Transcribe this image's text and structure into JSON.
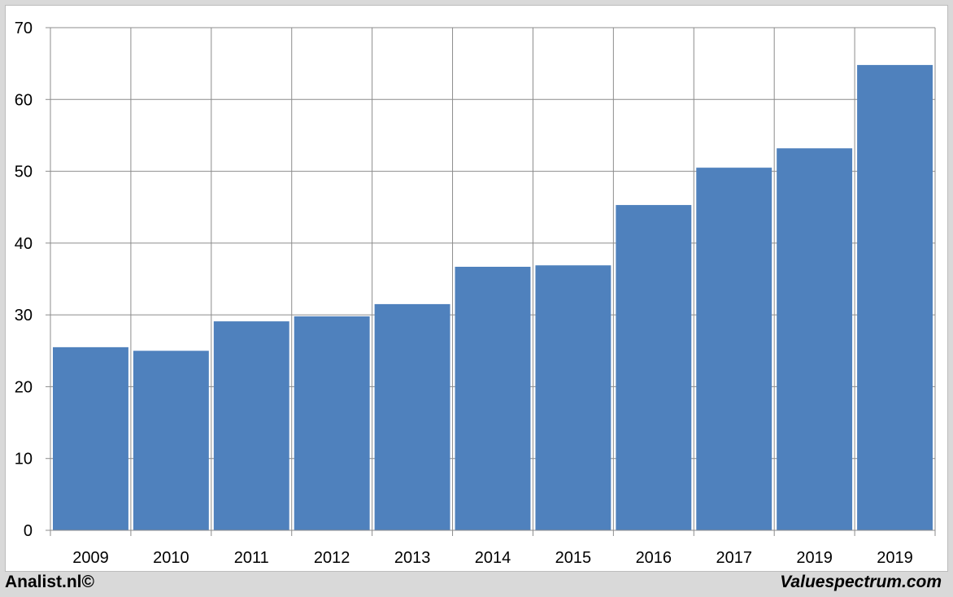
{
  "chart_data": {
    "type": "bar",
    "title": "",
    "xlabel": "",
    "ylabel": "",
    "categories": [
      "2009",
      "2010",
      "2011",
      "2012",
      "2013",
      "2014",
      "2015",
      "2016",
      "2017",
      "2019",
      "2019"
    ],
    "values": [
      25.5,
      25.0,
      29.1,
      29.8,
      31.5,
      36.7,
      36.9,
      45.3,
      50.5,
      53.2,
      64.8
    ],
    "ylim": [
      0,
      70
    ],
    "yticks": [
      "0",
      "10",
      "20",
      "30",
      "40",
      "50",
      "60",
      "70"
    ],
    "grid": true,
    "bar_color": "#4f81bd"
  },
  "footer": {
    "left_text": "Analist.nl©",
    "right_text": "Valuespectrum.com"
  }
}
